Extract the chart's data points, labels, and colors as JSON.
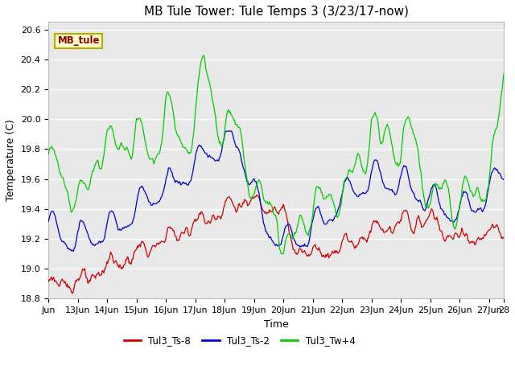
{
  "title": "MB Tule Tower: Tule Temps 3 (3/23/17-now)",
  "xlabel": "Time",
  "ylabel": "Temperature (C)",
  "ylim": [
    18.8,
    20.65
  ],
  "xlim": [
    0,
    15.5
  ],
  "background_color": "#ffffff",
  "plot_bg_color": "#e8e8e8",
  "grid_color": "#ffffff",
  "legend_label": "MB_tule",
  "legend_bg": "#ffffcc",
  "legend_border": "#bbaa00",
  "series_colors": [
    "#cc0000",
    "#0000cc",
    "#00cc00"
  ],
  "series_labels": [
    "Tul3_Ts-8",
    "Tul3_Ts-2",
    "Tul3_Tw+4"
  ],
  "xtick_positions": [
    0,
    1,
    2,
    3,
    4,
    5,
    6,
    7,
    8,
    9,
    10,
    11,
    12,
    13,
    14,
    15,
    15.5
  ],
  "xtick_labels": [
    "Jun",
    "13Jun",
    "14Jun",
    "15Jun",
    "16Jun",
    "17Jun",
    "18Jun",
    "19Jun",
    "20Jun",
    "21Jun",
    "22Jun",
    "23Jun",
    "24Jun",
    "25Jun",
    "26Jun",
    "27Jun",
    "28"
  ],
  "ytick_values": [
    18.8,
    19.0,
    19.2,
    19.4,
    19.6,
    19.8,
    20.0,
    20.2,
    20.4,
    20.6
  ],
  "title_fontsize": 11,
  "axis_fontsize": 9,
  "tick_fontsize": 8
}
